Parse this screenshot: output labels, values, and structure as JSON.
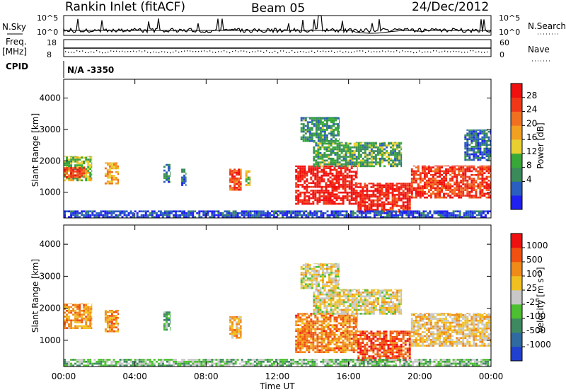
{
  "header": {
    "station": "Rankin Inlet (fitACF)",
    "beam": "Beam 05",
    "date": "24/Dec/2012"
  },
  "aux_panels": {
    "nsky_label": "N.Sky",
    "nsky_ticks": [
      "10^5",
      "10^0"
    ],
    "nsearch_label": "N.Search",
    "nsearch_ticks": [
      "10^5",
      "10^0"
    ],
    "freq_label": "Freq.",
    "freq_unit": "[MHz]",
    "freq_ticks": [
      "18",
      "8"
    ],
    "nave_label": "Nave",
    "nave_ticks": [
      "60",
      "0"
    ],
    "cpid_label": "CPID",
    "cpid_value": "N/A -3350"
  },
  "chart_data": [
    {
      "type": "heatmap",
      "name": "power",
      "ylabel": "Slant Range [km]",
      "xlabel": "Time UT",
      "x_ticks": [
        "00:00",
        "04:00",
        "08:00",
        "12:00",
        "16:00",
        "20:00",
        "00:00"
      ],
      "x_range_hours": [
        0,
        24
      ],
      "y_ticks": [
        1000,
        2000,
        3000,
        4000
      ],
      "ylim": [
        180,
        4600
      ],
      "colorbar": {
        "label": "Power [dB]",
        "ticks": [
          "28",
          "24",
          "20",
          "16",
          "12",
          "8",
          "4"
        ],
        "colors": [
          "#2020f0",
          "#2a5ec0",
          "#3a8a5a",
          "#38a838",
          "#e8d030",
          "#f2a020",
          "#f07020",
          "#f03818",
          "#f01010"
        ]
      },
      "regions": [
        {
          "t0": 0.0,
          "t1": 1.6,
          "r0": 1350,
          "r1": 2150,
          "level": 0.45
        },
        {
          "t0": 0.0,
          "t1": 1.2,
          "r0": 1450,
          "r1": 1800,
          "level": 0.85
        },
        {
          "t0": 2.3,
          "t1": 3.1,
          "r0": 1250,
          "r1": 1950,
          "level": 0.6
        },
        {
          "t0": 5.6,
          "t1": 6.0,
          "r0": 1300,
          "r1": 1900,
          "level": 0.25
        },
        {
          "t0": 6.6,
          "t1": 6.9,
          "r0": 1200,
          "r1": 1750,
          "level": 0.2
        },
        {
          "t0": 9.3,
          "t1": 10.0,
          "r0": 1050,
          "r1": 1750,
          "level": 0.8
        },
        {
          "t0": 10.2,
          "t1": 10.5,
          "r0": 1200,
          "r1": 1700,
          "level": 0.5
        },
        {
          "t0": 13.0,
          "t1": 16.5,
          "r0": 600,
          "r1": 1850,
          "level": 0.95
        },
        {
          "t0": 16.5,
          "t1": 19.5,
          "r0": 350,
          "r1": 1300,
          "level": 0.9
        },
        {
          "t0": 19.5,
          "t1": 24.0,
          "r0": 800,
          "r1": 1850,
          "level": 0.85
        },
        {
          "t0": 14.0,
          "t1": 19.0,
          "r0": 1800,
          "r1": 2600,
          "level": 0.35
        },
        {
          "t0": 13.3,
          "t1": 15.5,
          "r0": 2600,
          "r1": 3400,
          "level": 0.3
        },
        {
          "t0": 22.5,
          "t1": 24.0,
          "r0": 2000,
          "r1": 3000,
          "level": 0.2
        },
        {
          "t0": 0.0,
          "t1": 24.0,
          "r0": 180,
          "r1": 420,
          "level": 0.12
        }
      ]
    },
    {
      "type": "heatmap",
      "name": "velocity",
      "ylabel": "Slant Range [km]",
      "xlabel": "Time UT",
      "x_ticks": [
        "00:00",
        "04:00",
        "08:00",
        "12:00",
        "16:00",
        "20:00",
        "00:00"
      ],
      "x_range_hours": [
        0,
        24
      ],
      "y_ticks": [
        1000,
        2000,
        3000,
        4000
      ],
      "ylim": [
        180,
        4600
      ],
      "colorbar": {
        "label": "Velocity [m s⁻¹]",
        "ticks": [
          "1000",
          "500",
          "100",
          "25",
          "-25",
          "-100",
          "-500",
          "-1000"
        ],
        "colors": [
          "#2040d0",
          "#2f6aa0",
          "#3e8a60",
          "#4cc030",
          "#c8c8c8",
          "#f0c020",
          "#f08a18",
          "#f05010",
          "#f01010"
        ]
      },
      "regions": [
        {
          "t0": 0.0,
          "t1": 1.6,
          "r0": 1350,
          "r1": 2150,
          "level": 0.7
        },
        {
          "t0": 2.3,
          "t1": 3.1,
          "r0": 1250,
          "r1": 1950,
          "level": 0.7
        },
        {
          "t0": 5.6,
          "t1": 6.0,
          "r0": 1300,
          "r1": 1900,
          "level": 0.35
        },
        {
          "t0": 9.3,
          "t1": 10.0,
          "r0": 1050,
          "r1": 1750,
          "level": 0.65
        },
        {
          "t0": 13.0,
          "t1": 16.5,
          "r0": 600,
          "r1": 1850,
          "level": 0.75
        },
        {
          "t0": 16.5,
          "t1": 19.5,
          "r0": 350,
          "r1": 1300,
          "level": 0.85
        },
        {
          "t0": 19.5,
          "t1": 24.0,
          "r0": 800,
          "r1": 1850,
          "level": 0.6
        },
        {
          "t0": 14.0,
          "t1": 19.0,
          "r0": 1800,
          "r1": 2600,
          "level": 0.55
        },
        {
          "t0": 13.3,
          "t1": 15.5,
          "r0": 2600,
          "r1": 3400,
          "level": 0.55
        },
        {
          "t0": 0.0,
          "t1": 24.0,
          "r0": 180,
          "r1": 420,
          "level": 0.4
        }
      ]
    }
  ]
}
